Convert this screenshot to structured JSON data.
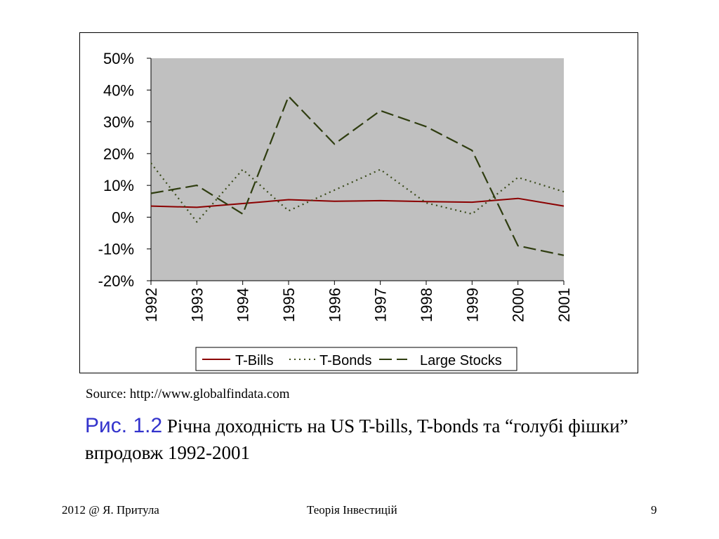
{
  "chart_data": {
    "type": "line",
    "categories": [
      "1992",
      "1993",
      "1994",
      "1995",
      "1996",
      "1997",
      "1998",
      "1999",
      "2000",
      "2001"
    ],
    "series": [
      {
        "name": "T-Bills",
        "color": "#8b0000",
        "style": "solid",
        "values": [
          3.5,
          3.1,
          4.3,
          5.5,
          5.0,
          5.2,
          4.9,
          4.7,
          5.9,
          3.5
        ]
      },
      {
        "name": "T-Bonds",
        "color": "#3a4a1a",
        "style": "dotted",
        "values": [
          17.0,
          -1.5,
          15.0,
          2.0,
          8.5,
          15.0,
          4.5,
          1.0,
          12.5,
          8.0
        ]
      },
      {
        "name": "Large Stocks",
        "color": "#2f3d10",
        "style": "dashed",
        "values": [
          7.5,
          10.0,
          1.0,
          38.0,
          23.0,
          33.5,
          28.5,
          21.0,
          -9.0,
          -12.0
        ]
      }
    ],
    "yticks": [
      "50%",
      "40%",
      "30%",
      "20%",
      "10%",
      "0%",
      "-10%",
      "-20%"
    ],
    "ylim": [
      -20,
      50
    ],
    "plot_background": "#c0c0c0",
    "legend_position": "bottom",
    "grid": false
  },
  "source": "Source: http://www.globalfindata.com",
  "caption": {
    "label": "Рис. 1.2",
    "text": " Річна доходність на US T-bills, T-bonds та “голубі фішки” впродовж 1992-2001"
  },
  "footer": {
    "left": "2012 @ Я. Притула",
    "center": "Теорія Інвестицій",
    "page": "9"
  }
}
